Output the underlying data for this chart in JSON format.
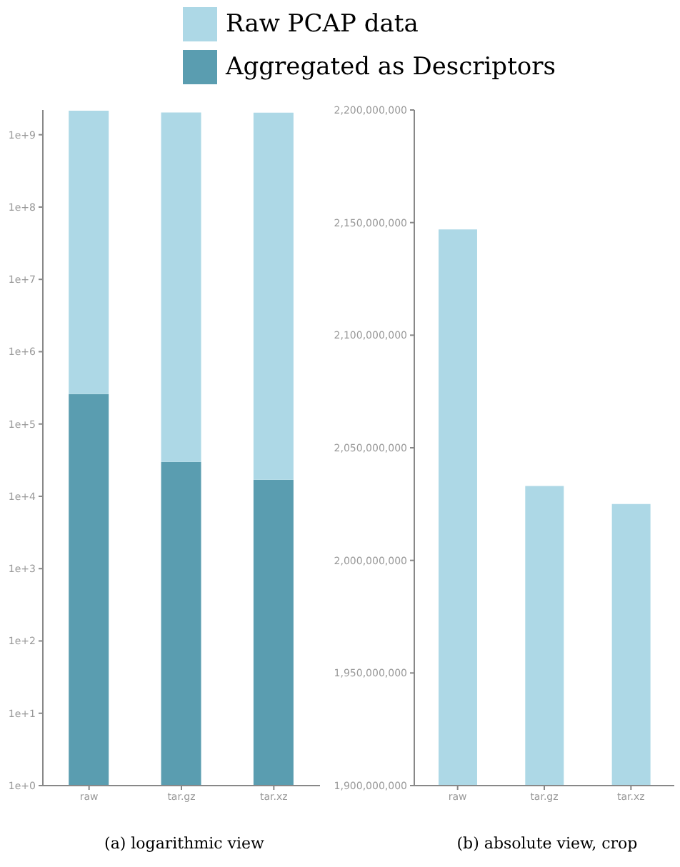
{
  "chart_data": [
    {
      "type": "bar",
      "categories": [
        "raw",
        "tar.gz",
        "tar.xz"
      ],
      "log": true,
      "legend": "top",
      "stacked": true,
      "annotations": [
        "(a) logarithmic view"
      ],
      "series": [
        {
          "name": "Aggregated as Descriptors",
          "color": "#5a9db0",
          "values": [
            260000,
            30000,
            17000
          ]
        },
        {
          "name": "Raw PCAP data",
          "color": "#add8e6",
          "values": [
            2146740000,
            2032970000,
            2024983000
          ]
        }
      ],
      "ylim": [
        1,
        2200000000
      ],
      "yticks": [
        {
          "value": 1,
          "label": "1e+0"
        },
        {
          "value": 10,
          "label": "1e+1"
        },
        {
          "value": 100,
          "label": "1e+2"
        },
        {
          "value": 1000,
          "label": "1e+3"
        },
        {
          "value": 10000,
          "label": "1e+4"
        },
        {
          "value": 100000,
          "label": "1e+5"
        },
        {
          "value": 1000000,
          "label": "1e+6"
        },
        {
          "value": 10000000,
          "label": "1e+7"
        },
        {
          "value": 100000000,
          "label": "1e+8"
        },
        {
          "value": 1000000000,
          "label": "1e+9"
        }
      ]
    },
    {
      "type": "bar",
      "categories": [
        "raw",
        "tar.gz",
        "tar.xz"
      ],
      "annotations": [
        "(b) absolute view, crop"
      ],
      "series": [
        {
          "color": "#add8e6",
          "values": [
            2147000000,
            2033000000,
            2025000000
          ]
        }
      ],
      "ylim": [
        1900000000,
        2200000000
      ],
      "yticks": [
        {
          "value": 1900000000,
          "label": "1,900,000,000"
        },
        {
          "value": 1950000000,
          "label": "1,950,000,000"
        },
        {
          "value": 2000000000,
          "label": "2,000,000,000"
        },
        {
          "value": 2050000000,
          "label": "2,050,000,000"
        },
        {
          "value": 2100000000,
          "label": "2,100,000,000"
        },
        {
          "value": 2150000000,
          "label": "2,150,000,000"
        },
        {
          "value": 2200000000,
          "label": "2,200,000,000"
        }
      ]
    }
  ]
}
